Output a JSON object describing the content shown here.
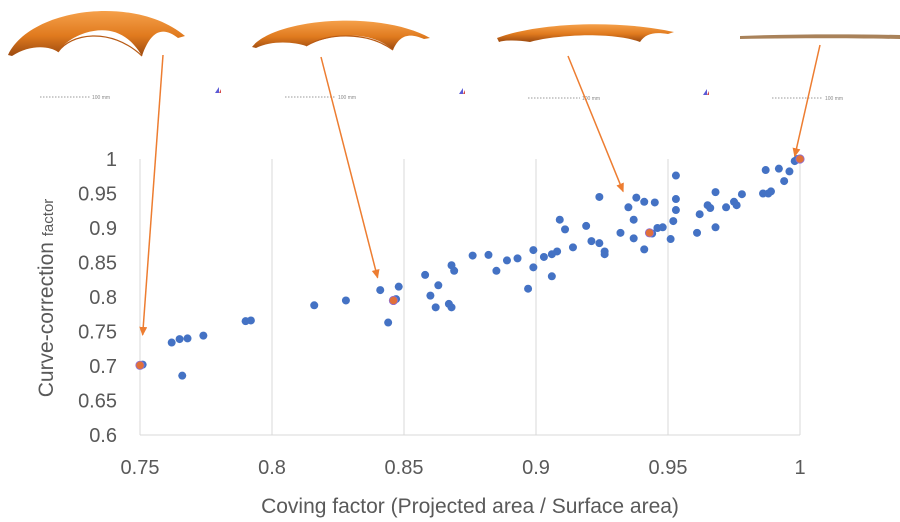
{
  "chart_data": {
    "type": "scatter",
    "xlabel": "Coving factor (Projected area / Surface area)",
    "ylabel_main": "Curve-correction ",
    "ylabel_small": "factor",
    "xlim": [
      0.75,
      1.0
    ],
    "ylim": [
      0.6,
      1.0
    ],
    "x_ticks": [
      "0.75",
      "0.8",
      "0.85",
      "0.9",
      "0.95",
      "1"
    ],
    "y_ticks": [
      "0.6",
      "0.65",
      "0.7",
      "0.75",
      "0.8",
      "0.85",
      "0.9",
      "0.95",
      "1"
    ],
    "grid": "vertical",
    "colors": {
      "points": "#4472C4",
      "highlight": "#E1703A",
      "arrows": "#ED7D31",
      "shell": "#E07A1E",
      "grid": "#d9d9d9",
      "text": "#595959"
    },
    "series": [
      {
        "points": [
          [
            0.751,
            0.702
          ],
          [
            0.762,
            0.734
          ],
          [
            0.765,
            0.739
          ],
          [
            0.768,
            0.74
          ],
          [
            0.766,
            0.686
          ],
          [
            0.774,
            0.744
          ],
          [
            0.79,
            0.765
          ],
          [
            0.792,
            0.766
          ],
          [
            0.816,
            0.788
          ],
          [
            0.828,
            0.795
          ],
          [
            0.841,
            0.81
          ],
          [
            0.844,
            0.763
          ],
          [
            0.847,
            0.797
          ],
          [
            0.848,
            0.815
          ],
          [
            0.858,
            0.832
          ],
          [
            0.86,
            0.802
          ],
          [
            0.862,
            0.785
          ],
          [
            0.863,
            0.817
          ],
          [
            0.867,
            0.79
          ],
          [
            0.868,
            0.785
          ],
          [
            0.868,
            0.846
          ],
          [
            0.869,
            0.838
          ],
          [
            0.876,
            0.86
          ],
          [
            0.882,
            0.861
          ],
          [
            0.885,
            0.838
          ],
          [
            0.889,
            0.853
          ],
          [
            0.893,
            0.856
          ],
          [
            0.897,
            0.812
          ],
          [
            0.899,
            0.868
          ],
          [
            0.899,
            0.843
          ],
          [
            0.903,
            0.858
          ],
          [
            0.906,
            0.862
          ],
          [
            0.906,
            0.83
          ],
          [
            0.908,
            0.866
          ],
          [
            0.909,
            0.912
          ],
          [
            0.911,
            0.898
          ],
          [
            0.914,
            0.872
          ],
          [
            0.919,
            0.903
          ],
          [
            0.921,
            0.881
          ],
          [
            0.924,
            0.878
          ],
          [
            0.924,
            0.945
          ],
          [
            0.926,
            0.866
          ],
          [
            0.926,
            0.862
          ],
          [
            0.932,
            0.893
          ],
          [
            0.935,
            0.93
          ],
          [
            0.937,
            0.885
          ],
          [
            0.937,
            0.912
          ],
          [
            0.938,
            0.944
          ],
          [
            0.941,
            0.869
          ],
          [
            0.941,
            0.938
          ],
          [
            0.944,
            0.892
          ],
          [
            0.945,
            0.937
          ],
          [
            0.946,
            0.9
          ],
          [
            0.948,
            0.901
          ],
          [
            0.951,
            0.884
          ],
          [
            0.952,
            0.91
          ],
          [
            0.953,
            0.926
          ],
          [
            0.953,
            0.942
          ],
          [
            0.953,
            0.976
          ],
          [
            0.961,
            0.893
          ],
          [
            0.962,
            0.92
          ],
          [
            0.965,
            0.933
          ],
          [
            0.966,
            0.929
          ],
          [
            0.968,
            0.901
          ],
          [
            0.968,
            0.952
          ],
          [
            0.972,
            0.93
          ],
          [
            0.975,
            0.938
          ],
          [
            0.976,
            0.933
          ],
          [
            0.978,
            0.949
          ],
          [
            0.986,
            0.95
          ],
          [
            0.987,
            0.984
          ],
          [
            0.988,
            0.95
          ],
          [
            0.989,
            0.953
          ],
          [
            0.992,
            0.986
          ],
          [
            0.994,
            0.968
          ],
          [
            0.996,
            0.982
          ],
          [
            0.998,
            0.997
          ],
          [
            0.999,
            1.0
          ]
        ]
      }
    ],
    "highlighted_points": [
      [
        0.75,
        0.701
      ],
      [
        0.846,
        0.795
      ],
      [
        0.943,
        0.893
      ],
      [
        1.0,
        1.0
      ]
    ],
    "arrows_to": [
      [
        0.751,
        0.745
      ],
      [
        0.84,
        0.828
      ],
      [
        0.933,
        0.953
      ],
      [
        0.998,
        1.004
      ]
    ]
  },
  "scale_bars": [
    {
      "label": "100 mm"
    },
    {
      "label": "100 mm"
    },
    {
      "label": "100 mm"
    },
    {
      "label": "100 mm"
    }
  ]
}
